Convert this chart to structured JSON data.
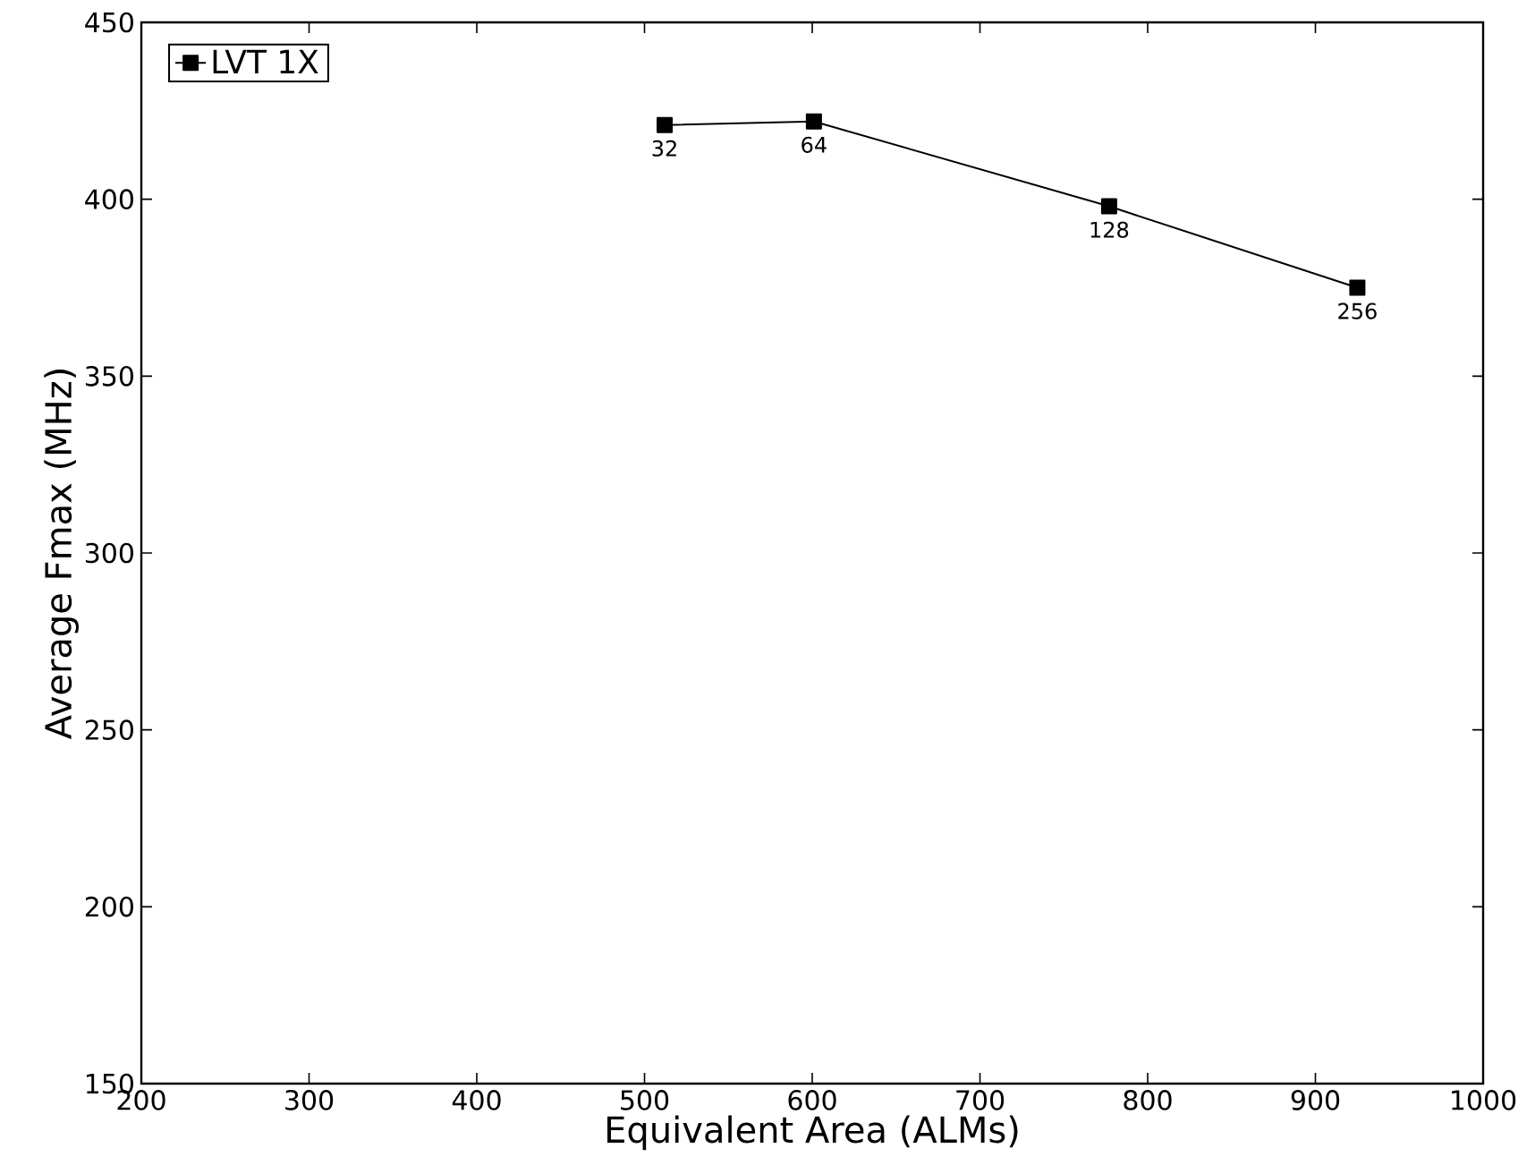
{
  "chart_data": {
    "type": "line",
    "xlabel": "Equivalent Area (ALMs)",
    "ylabel": "Average Fmax (MHz)",
    "x": [
      512,
      601,
      777,
      925
    ],
    "series": [
      {
        "name": "LVT 1X",
        "color": "#000000",
        "values": [
          421,
          422,
          398,
          375
        ]
      }
    ],
    "xlim": [
      200,
      1000
    ],
    "xticks": [
      200,
      300,
      400,
      500,
      600,
      700,
      800,
      900,
      1000
    ],
    "ylim": [
      150,
      450
    ],
    "yticks": [
      150,
      200,
      250,
      300,
      350,
      400,
      450
    ],
    "marker": "square",
    "line_style": "solid",
    "legend": "top left",
    "grid": false,
    "annotations": [
      {
        "text": "32",
        "x": 512,
        "y": 421
      },
      {
        "text": "64",
        "x": 601,
        "y": 422
      },
      {
        "text": "128",
        "x": 777,
        "y": 398
      },
      {
        "text": "256",
        "x": 925,
        "y": 375
      }
    ]
  }
}
